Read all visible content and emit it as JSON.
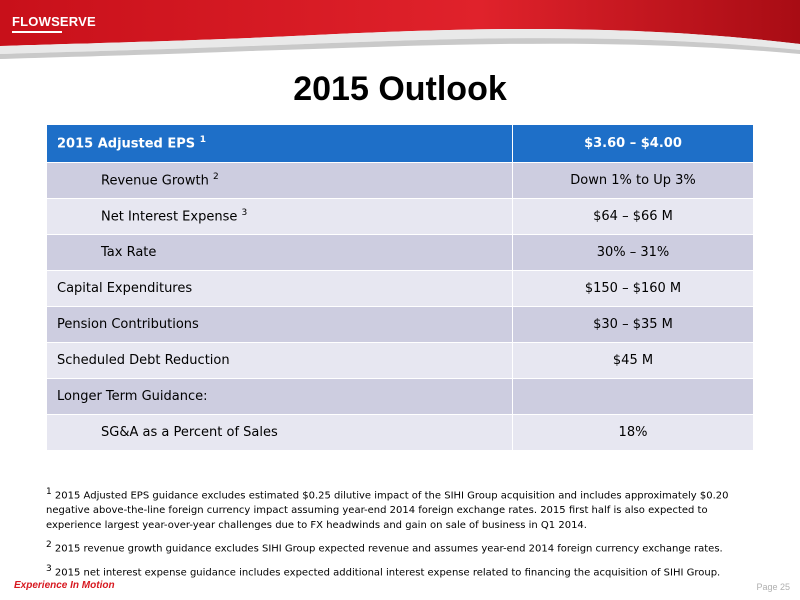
{
  "header": {
    "logo_text": "FLOWSERVE",
    "brand_color": "#d71920"
  },
  "title": "2015 Outlook",
  "table": {
    "header_color": "#1e6fc8",
    "rows": [
      {
        "label": "2015 Adjusted EPS",
        "sup": "1",
        "value": "$3.60 – $4.00"
      },
      {
        "label": "Revenue Growth",
        "sup": "2",
        "value": "Down 1% to Up 3%"
      },
      {
        "label": "Net Interest Expense",
        "sup": "3",
        "value": "$64 – $66 M"
      },
      {
        "label": "Tax Rate",
        "value": "30% – 31%"
      },
      {
        "label": "Capital Expenditures",
        "value": "$150 – $160 M"
      },
      {
        "label": "Pension Contributions",
        "value": "$30 – $35 M"
      },
      {
        "label": "Scheduled Debt Reduction",
        "value": "$45 M"
      },
      {
        "label": "Longer Term Guidance:",
        "value": ""
      },
      {
        "label": "SG&A as a Percent of Sales",
        "value": "18%"
      }
    ]
  },
  "footnotes": [
    {
      "num": "1",
      "text": "2015 Adjusted EPS guidance excludes estimated $0.25 dilutive impact of the SIHI Group acquisition and includes approximately $0.20 negative above-the-line foreign currency impact assuming year-end 2014 foreign exchange rates. 2015 first half is also expected to experience largest year-over-year challenges due to FX headwinds and gain on sale of business in Q1 2014."
    },
    {
      "num": "2",
      "text": "2015 revenue growth guidance excludes SIHI Group expected revenue and assumes year-end 2014 foreign currency exchange rates."
    },
    {
      "num": "3",
      "text": "2015 net interest expense guidance includes expected additional interest expense related to financing the acquisition of SIHI Group."
    }
  ],
  "footer": {
    "tagline": "Experience In Motion",
    "page": "Page 25"
  }
}
